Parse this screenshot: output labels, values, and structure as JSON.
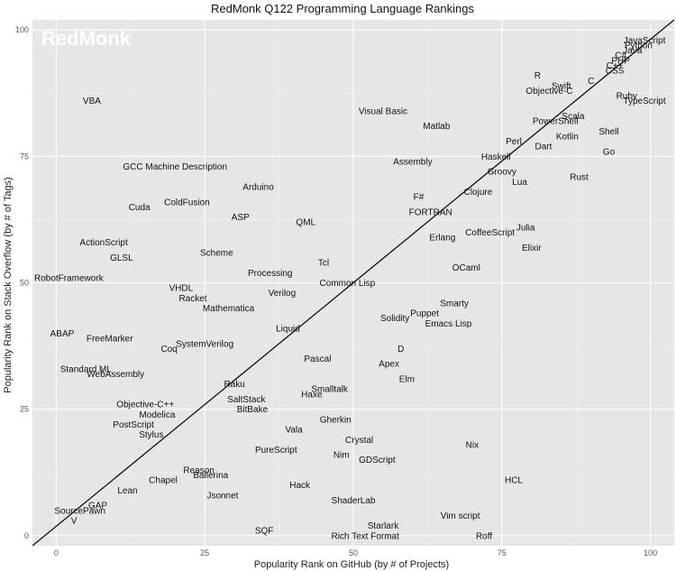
{
  "chart_data": {
    "type": "scatter",
    "title": "RedMonk Q122 Programming Language Rankings",
    "xlabel": "Popularity Rank on GitHub (by # of Projects)",
    "ylabel": "Popularity Rank on Stack Overflow (by # of Tags)",
    "watermark": "RedMonk",
    "xlim": [
      -4,
      104
    ],
    "ylim": [
      -2,
      102
    ],
    "x_ticks": [
      0,
      25,
      50,
      75,
      100
    ],
    "y_ticks": [
      0,
      25,
      50,
      75,
      100
    ],
    "grid": true,
    "background": "#e6e6e6",
    "fit_line": [
      [
        -4,
        -2
      ],
      [
        104,
        102
      ]
    ],
    "points": [
      {
        "label": "JavaScript",
        "x": 99,
        "y": 98
      },
      {
        "label": "Python",
        "x": 98,
        "y": 97
      },
      {
        "label": "Java",
        "x": 97,
        "y": 96
      },
      {
        "label": "C#",
        "x": 95,
        "y": 95
      },
      {
        "label": "PHP",
        "x": 95,
        "y": 94
      },
      {
        "label": "C++",
        "x": 94,
        "y": 93
      },
      {
        "label": "CSS",
        "x": 94,
        "y": 92
      },
      {
        "label": "R",
        "x": 81,
        "y": 91
      },
      {
        "label": "Swift",
        "x": 85,
        "y": 89
      },
      {
        "label": "C",
        "x": 90,
        "y": 90
      },
      {
        "label": "Objective-C",
        "x": 83,
        "y": 88
      },
      {
        "label": "Ruby",
        "x": 96,
        "y": 87
      },
      {
        "label": "TypeScript",
        "x": 99,
        "y": 86
      },
      {
        "label": "Scala",
        "x": 87,
        "y": 83
      },
      {
        "label": "PowerShell",
        "x": 84,
        "y": 82
      },
      {
        "label": "Shell",
        "x": 93,
        "y": 80
      },
      {
        "label": "Kotlin",
        "x": 86,
        "y": 79
      },
      {
        "label": "Perl",
        "x": 77,
        "y": 78
      },
      {
        "label": "Dart",
        "x": 82,
        "y": 77
      },
      {
        "label": "Go",
        "x": 93,
        "y": 76
      },
      {
        "label": "Haskell",
        "x": 74,
        "y": 75
      },
      {
        "label": "Groovy",
        "x": 75,
        "y": 72
      },
      {
        "label": "Rust",
        "x": 88,
        "y": 71
      },
      {
        "label": "Lua",
        "x": 78,
        "y": 70
      },
      {
        "label": "Clojure",
        "x": 71,
        "y": 68
      },
      {
        "label": "F#",
        "x": 61,
        "y": 67
      },
      {
        "label": "FORTRAN",
        "x": 63,
        "y": 64
      },
      {
        "label": "Julia",
        "x": 79,
        "y": 61
      },
      {
        "label": "CoffeeScript",
        "x": 73,
        "y": 60
      },
      {
        "label": "Erlang",
        "x": 65,
        "y": 59
      },
      {
        "label": "Elixir",
        "x": 80,
        "y": 57
      },
      {
        "label": "OCaml",
        "x": 69,
        "y": 53
      },
      {
        "label": "Visual Basic",
        "x": 55,
        "y": 84
      },
      {
        "label": "Matlab",
        "x": 64,
        "y": 81
      },
      {
        "label": "Assembly",
        "x": 60,
        "y": 74
      },
      {
        "label": "VBA",
        "x": 6,
        "y": 86
      },
      {
        "label": "GCC Machine Description",
        "x": 20,
        "y": 73
      },
      {
        "label": "Arduino",
        "x": 34,
        "y": 69
      },
      {
        "label": "ColdFusion",
        "x": 22,
        "y": 66
      },
      {
        "label": "Cuda",
        "x": 14,
        "y": 65
      },
      {
        "label": "ASP",
        "x": 31,
        "y": 63
      },
      {
        "label": "QML",
        "x": 42,
        "y": 62
      },
      {
        "label": "ActionScript",
        "x": 8,
        "y": 58
      },
      {
        "label": "Scheme",
        "x": 27,
        "y": 56
      },
      {
        "label": "GLSL",
        "x": 11,
        "y": 55
      },
      {
        "label": "Tcl",
        "x": 45,
        "y": 54
      },
      {
        "label": "Processing",
        "x": 36,
        "y": 52
      },
      {
        "label": "RobotFramework",
        "x": -2,
        "y": 51
      },
      {
        "label": "Common Lisp",
        "x": 49,
        "y": 50
      },
      {
        "label": "VHDL",
        "x": 21,
        "y": 49
      },
      {
        "label": "Verilog",
        "x": 38,
        "y": 48
      },
      {
        "label": "Racket",
        "x": 23,
        "y": 47
      },
      {
        "label": "Mathematica",
        "x": 29,
        "y": 45
      },
      {
        "label": "Smarty",
        "x": 67,
        "y": 46
      },
      {
        "label": "Puppet",
        "x": 62,
        "y": 44
      },
      {
        "label": "Solidity",
        "x": 57,
        "y": 43
      },
      {
        "label": "Emacs Lisp",
        "x": 66,
        "y": 42
      },
      {
        "label": "Liquid",
        "x": 39,
        "y": 41
      },
      {
        "label": "ABAP",
        "x": 1,
        "y": 40
      },
      {
        "label": "FreeMarker",
        "x": 9,
        "y": 39
      },
      {
        "label": "SystemVerilog",
        "x": 25,
        "y": 38
      },
      {
        "label": "Coq",
        "x": 19,
        "y": 37
      },
      {
        "label": "D",
        "x": 58,
        "y": 37
      },
      {
        "label": "Pascal",
        "x": 44,
        "y": 35
      },
      {
        "label": "Apex",
        "x": 56,
        "y": 34
      },
      {
        "label": "Standard ML",
        "x": 5,
        "y": 33
      },
      {
        "label": "WebAssembly",
        "x": 10,
        "y": 32
      },
      {
        "label": "Elm",
        "x": 59,
        "y": 31
      },
      {
        "label": "Raku",
        "x": 30,
        "y": 30
      },
      {
        "label": "Smalltalk",
        "x": 46,
        "y": 29
      },
      {
        "label": "Haxe",
        "x": 43,
        "y": 28
      },
      {
        "label": "SaltStack",
        "x": 32,
        "y": 27
      },
      {
        "label": "Objective-C++",
        "x": 15,
        "y": 26
      },
      {
        "label": "BitBake",
        "x": 33,
        "y": 25
      },
      {
        "label": "Modelica",
        "x": 17,
        "y": 24
      },
      {
        "label": "Gherkin",
        "x": 47,
        "y": 23
      },
      {
        "label": "PostScript",
        "x": 13,
        "y": 22
      },
      {
        "label": "Vala",
        "x": 40,
        "y": 21
      },
      {
        "label": "Stylus",
        "x": 16,
        "y": 20
      },
      {
        "label": "Crystal",
        "x": 51,
        "y": 19
      },
      {
        "label": "Nix",
        "x": 70,
        "y": 18
      },
      {
        "label": "PureScript",
        "x": 37,
        "y": 17
      },
      {
        "label": "Nim",
        "x": 48,
        "y": 16
      },
      {
        "label": "GDScript",
        "x": 54,
        "y": 15
      },
      {
        "label": "Reason",
        "x": 24,
        "y": 13
      },
      {
        "label": "Ballerina",
        "x": 26,
        "y": 12
      },
      {
        "label": "Chapel",
        "x": 18,
        "y": 11
      },
      {
        "label": "HCL",
        "x": 77,
        "y": 11
      },
      {
        "label": "Hack",
        "x": 41,
        "y": 10
      },
      {
        "label": "Lean",
        "x": 12,
        "y": 9
      },
      {
        "label": "Jsonnet",
        "x": 28,
        "y": 8
      },
      {
        "label": "ShaderLab",
        "x": 50,
        "y": 7
      },
      {
        "label": "GAP",
        "x": 7,
        "y": 6
      },
      {
        "label": "SourcePawn",
        "x": 4,
        "y": 5
      },
      {
        "label": "Vim script",
        "x": 68,
        "y": 4
      },
      {
        "label": "V",
        "x": 3,
        "y": 3
      },
      {
        "label": "Starlark",
        "x": 55,
        "y": 2
      },
      {
        "label": "SQF",
        "x": 35,
        "y": 1
      },
      {
        "label": "Rich Text Format",
        "x": 52,
        "y": 0
      },
      {
        "label": "Roff",
        "x": 72,
        "y": 0
      }
    ]
  }
}
